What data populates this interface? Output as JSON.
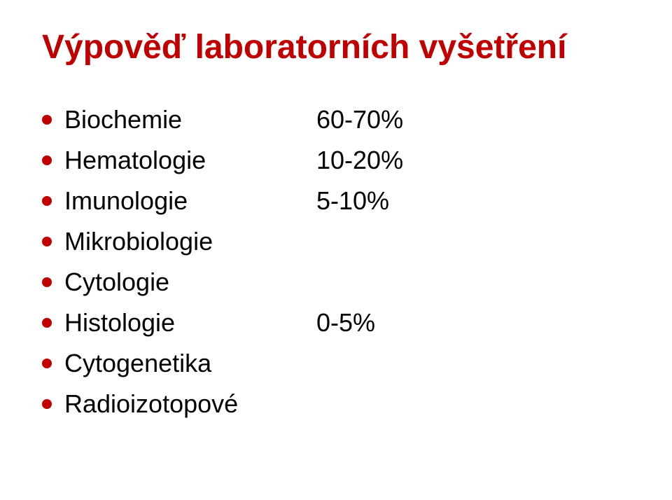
{
  "title": "Výpověď laboratorních vyšetření",
  "title_color": "#c00000",
  "bullet_color": "#c00000",
  "text_color": "#000000",
  "background_color": "#ffffff",
  "title_fontsize": 48,
  "body_fontsize": 36,
  "items": [
    {
      "label": "Biochemie",
      "value": "60-70%"
    },
    {
      "label": "Hematologie",
      "value": "10-20%"
    },
    {
      "label": "Imunologie",
      "value": "5-10%"
    },
    {
      "label": "Mikrobiologie",
      "value": ""
    },
    {
      "label": "Cytologie",
      "value": ""
    },
    {
      "label": "Histologie",
      "value": "0-5%"
    },
    {
      "label": "Cytogenetika",
      "value": ""
    },
    {
      "label": "Radioizotopové",
      "value": ""
    }
  ]
}
